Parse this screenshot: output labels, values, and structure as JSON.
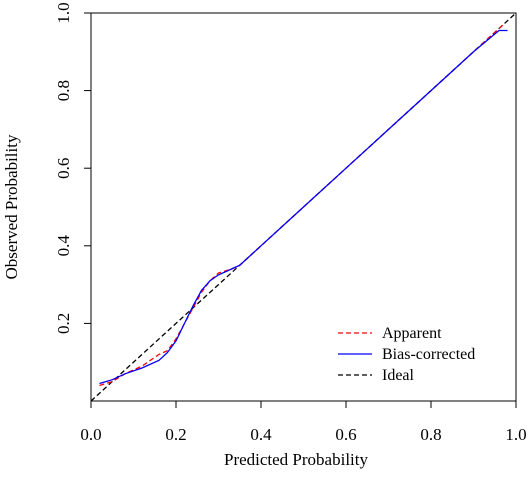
{
  "chart_data": {
    "type": "line",
    "xlabel": "Predicted Probability",
    "ylabel": "Observed Probability",
    "xlim": [
      0.0,
      1.0
    ],
    "ylim": [
      0.0,
      1.0
    ],
    "xticks": [
      "0.0",
      "0.2",
      "0.4",
      "0.6",
      "0.8",
      "1.0"
    ],
    "yticks": [
      "0.2",
      "0.4",
      "0.6",
      "0.8",
      "1.0"
    ],
    "legend_position": "bottom-right",
    "series": [
      {
        "name": "Apparent",
        "color": "#ff0000",
        "style": "dashed",
        "x": [
          0.02,
          0.05,
          0.08,
          0.12,
          0.16,
          0.18,
          0.2,
          0.22,
          0.24,
          0.26,
          0.28,
          0.3,
          0.33,
          0.35,
          0.4,
          0.5,
          0.6,
          0.7,
          0.8,
          0.9,
          0.97
        ],
        "y": [
          0.04,
          0.05,
          0.07,
          0.09,
          0.12,
          0.13,
          0.16,
          0.2,
          0.24,
          0.28,
          0.31,
          0.33,
          0.34,
          0.35,
          0.4,
          0.5,
          0.6,
          0.7,
          0.8,
          0.9,
          0.97
        ]
      },
      {
        "name": "Bias-corrected",
        "color": "#0000ff",
        "style": "solid",
        "x": [
          0.02,
          0.05,
          0.08,
          0.12,
          0.16,
          0.18,
          0.2,
          0.22,
          0.24,
          0.26,
          0.28,
          0.3,
          0.33,
          0.35,
          0.4,
          0.5,
          0.6,
          0.7,
          0.8,
          0.9,
          0.96,
          0.98
        ],
        "y": [
          0.045,
          0.055,
          0.07,
          0.085,
          0.105,
          0.125,
          0.155,
          0.2,
          0.245,
          0.285,
          0.31,
          0.325,
          0.34,
          0.35,
          0.4,
          0.5,
          0.6,
          0.7,
          0.8,
          0.9,
          0.955,
          0.955
        ]
      },
      {
        "name": "Ideal",
        "color": "#000000",
        "style": "dashed",
        "x": [
          0.0,
          1.0
        ],
        "y": [
          0.0,
          1.0
        ]
      }
    ]
  }
}
